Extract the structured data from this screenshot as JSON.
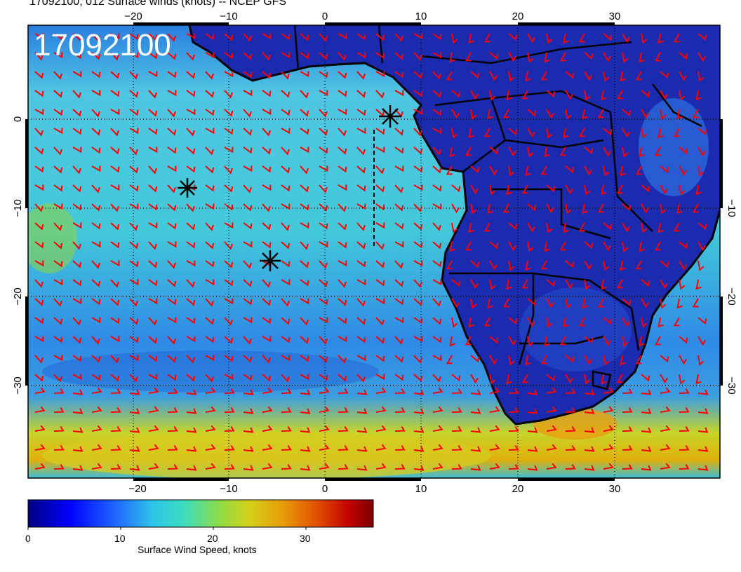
{
  "title": "17092100, 012 Surface winds (knots) -- NCEP GFS",
  "timestamp_label": "17092100",
  "axes": {
    "lon_ticks": [
      "−20",
      "−10",
      "0",
      "10",
      "20",
      "30"
    ],
    "lat_ticks": [
      "0",
      "−10",
      "−20",
      "−30"
    ]
  },
  "colorbar": {
    "label": "Surface Wind Speed, knots",
    "ticks": [
      "0",
      "10",
      "20",
      "30"
    ],
    "range": [
      0,
      37
    ],
    "colors": [
      "#00007f",
      "#0000ff",
      "#1f63ff",
      "#2ec4e8",
      "#3cdcc0",
      "#8adc4a",
      "#d4d21a",
      "#e89a0a",
      "#e04d00",
      "#c20000",
      "#7a0000"
    ]
  },
  "map": {
    "ocean_color": "#3aa8d8",
    "land_color": "#1a2bb0",
    "barb_color": "#ff0000",
    "grid": "dotted",
    "markers": [
      "asterisk",
      "asterisk",
      "asterisk"
    ]
  }
}
